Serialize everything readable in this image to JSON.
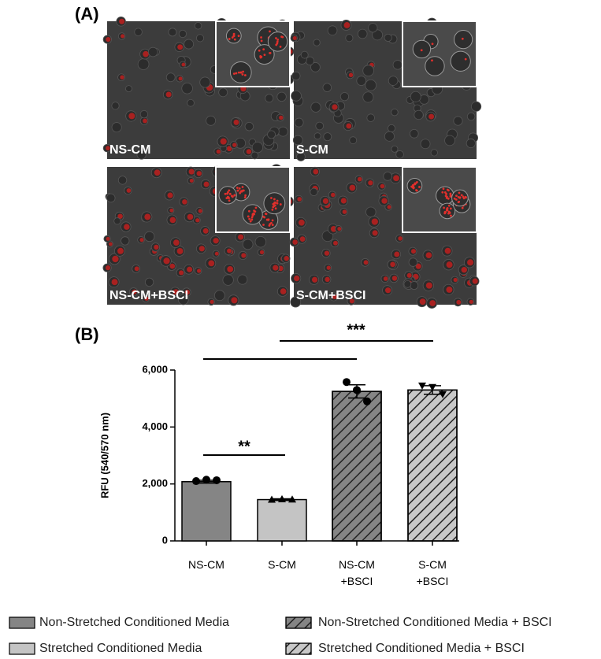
{
  "panel_labels": [
    "(A)",
    "(B)"
  ],
  "images": [
    {
      "label": "NS-CM"
    },
    {
      "label": "S-CM"
    },
    {
      "label": "NS-CM+BSCI"
    },
    {
      "label": "S-CM+BSCI"
    }
  ],
  "chart_data": {
    "type": "bar",
    "y_label": "RFU (540/570 nm)",
    "categories": [
      "NS-CM",
      "S-CM",
      "NS-CM\n+BSCI",
      "S-CM\n+BSCI"
    ],
    "values": [
      2080,
      1450,
      5250,
      5300
    ],
    "errors": [
      50,
      30,
      230,
      150
    ],
    "points": [
      [
        2100,
        2150,
        2130
      ],
      [
        1450,
        1470,
        1460
      ],
      [
        5580,
        5300,
        4900
      ],
      [
        5450,
        5400,
        5150
      ]
    ],
    "markers": [
      "circle",
      "triangle-up",
      "circle",
      "triangle-down"
    ],
    "colors": [
      "#858585",
      "#c4c4c4",
      "#858585",
      "#c8c8c8"
    ],
    "hatched": [
      false,
      false,
      true,
      true
    ],
    "legend": [
      "Non-Stretched Conditioned Media",
      "Stretched Conditioned Media",
      "Non-Stretched Conditioned Media + BSCI",
      "Stretched Conditioned Media + BSCI"
    ],
    "annotations": [
      "**",
      "***"
    ],
    "ylim": [
      0,
      6000
    ],
    "yticks": [
      0,
      {
        "value": 2000,
        "label": "2,000"
      },
      {
        "value": 4000,
        "label": "4,000"
      },
      {
        "value": 6000,
        "label": "6,000"
      }
    ]
  }
}
